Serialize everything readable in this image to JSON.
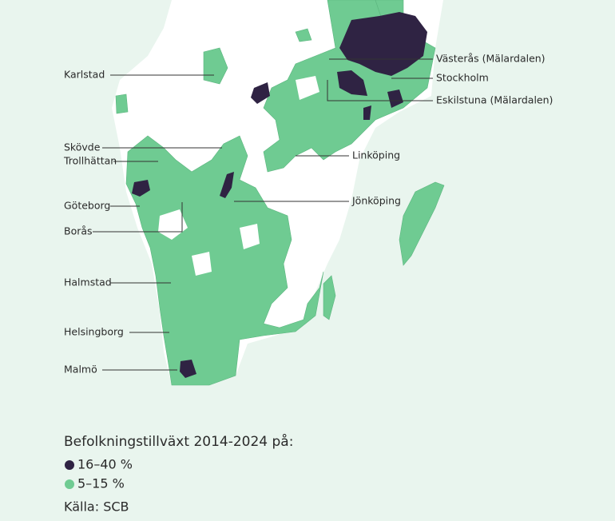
{
  "map": {
    "labels": [
      "Karlstad",
      "Skövde",
      "Trollhättan",
      "Göteborg",
      "Borås",
      "Halmstad",
      "Helsingborg",
      "Malmö",
      "Västerås (Mälardalen)",
      "Stockholm",
      "Eskilstuna (Mälardalen)",
      "Linköping",
      "Jönköping"
    ],
    "legend": {
      "title": "Befolkningstillväxt 2014-2024 på:",
      "items": [
        {
          "label": "16–40 %",
          "color": "#2f2343"
        },
        {
          "label": "5–15 %",
          "color": "#6fcb92"
        }
      ]
    },
    "source": "Källa: SCB"
  }
}
